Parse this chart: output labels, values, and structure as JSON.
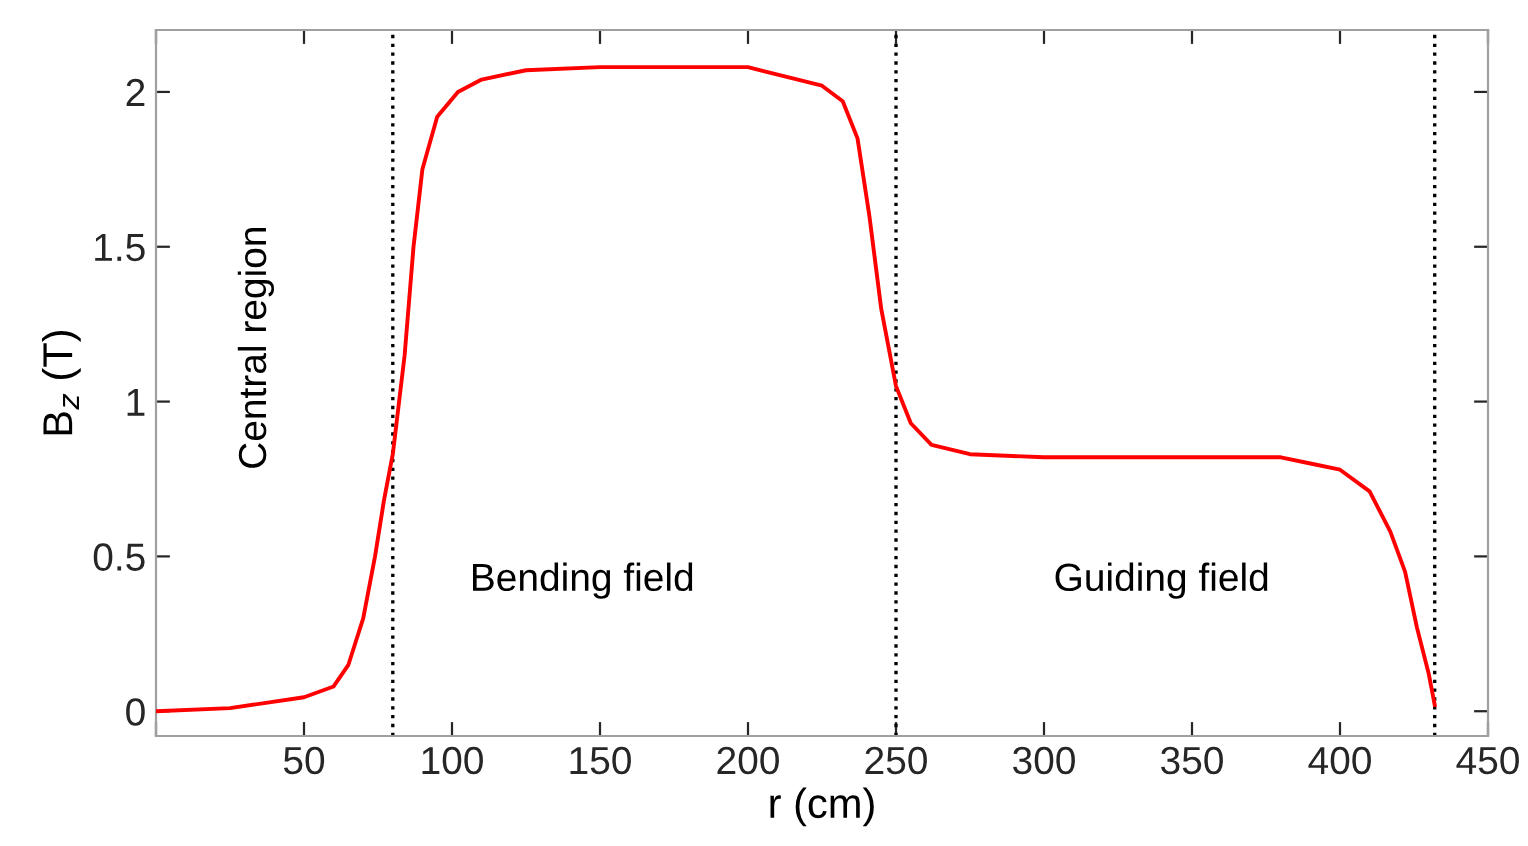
{
  "chart_data": {
    "type": "line",
    "xlabel": "r (cm)",
    "ylabel": "B$_{z}$ (T)",
    "xlim": [
      0,
      450
    ],
    "xticks": [
      {
        "value": 0,
        "label": null
      },
      50,
      100,
      150,
      200,
      250,
      300,
      350,
      400,
      450
    ],
    "ylim": [
      -0.08,
      2.2
    ],
    "yticks": [
      0,
      0.5,
      1,
      1.5,
      2
    ],
    "grid": false,
    "legend": false,
    "marker": "none",
    "line_style": "solid",
    "series": [
      {
        "color": "#ff0000",
        "x": [
          0,
          25,
          50,
          60,
          65,
          70,
          74,
          77,
          80,
          84,
          87,
          90,
          95,
          102,
          110,
          125,
          150,
          200,
          225,
          232,
          237,
          241,
          245,
          250,
          255,
          262,
          275,
          300,
          350,
          380,
          390,
          400,
          410,
          417,
          422,
          426,
          430,
          432
        ],
        "values": [
          0,
          0.01,
          0.045,
          0.08,
          0.15,
          0.3,
          0.5,
          0.68,
          0.83,
          1.15,
          1.5,
          1.75,
          1.92,
          2.0,
          2.04,
          2.07,
          2.08,
          2.08,
          2.02,
          1.97,
          1.85,
          1.6,
          1.3,
          1.05,
          0.93,
          0.86,
          0.83,
          0.82,
          0.82,
          0.82,
          0.8,
          0.78,
          0.71,
          0.58,
          0.45,
          0.27,
          0.12,
          0.02
        ]
      }
    ],
    "ref_lines": [
      {
        "axis": "x",
        "value": 80,
        "color": "#000000",
        "line_style": "dotted"
      },
      {
        "axis": "x",
        "value": 250,
        "color": "#000000",
        "line_style": "dotted"
      },
      {
        "axis": "x",
        "value": 432,
        "color": "#000000",
        "line_style": "dotted"
      }
    ],
    "annotations": [
      "Central region",
      "Bending field",
      "Guiding field"
    ]
  }
}
